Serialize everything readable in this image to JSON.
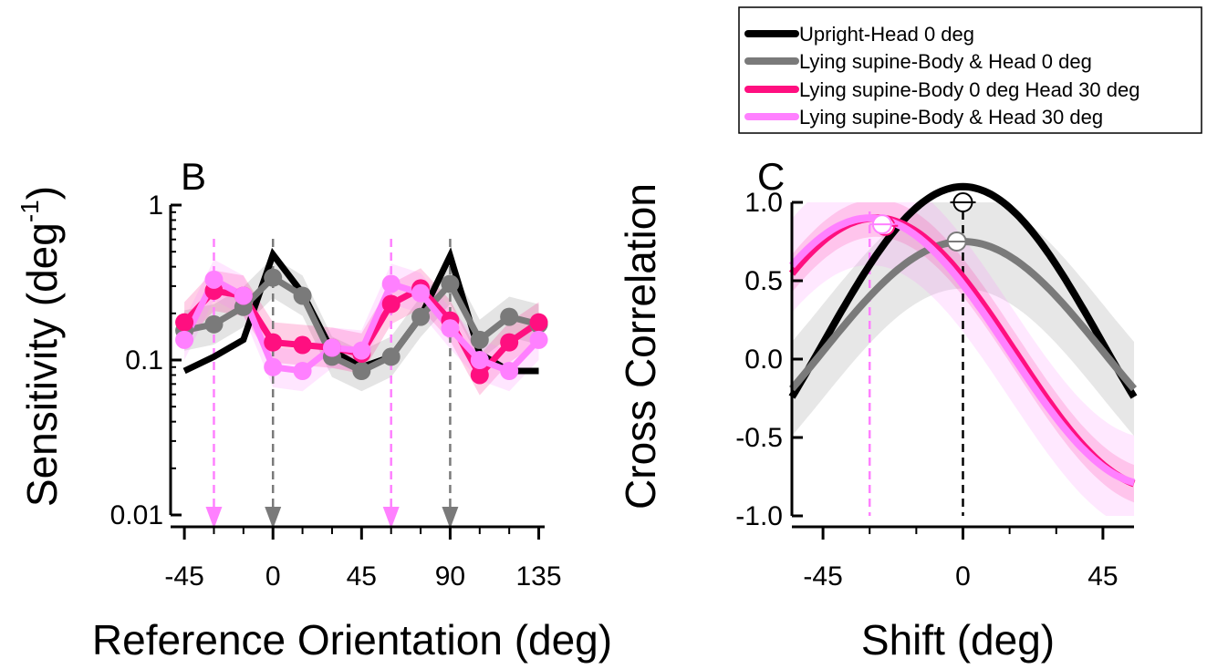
{
  "legend": {
    "entries": [
      {
        "label": "Upright-Head 0 deg",
        "color": "#000000"
      },
      {
        "label": "Lying supine-Body & Head 0 deg",
        "color": "#7a7a7a"
      },
      {
        "label": "Lying supine-Body 0 deg Head 30 deg",
        "color": "#ff0f80"
      },
      {
        "label": "Lying supine-Body & Head 30 deg",
        "color": "#ff80ff"
      }
    ]
  },
  "chart_data": [
    {
      "type": "line",
      "panel_label": "B",
      "xlabel": "Reference Orientation (deg)",
      "ylabel_main": "Sensitivity (deg",
      "ylabel_sup": "-1",
      "ylabel_close": ")",
      "yscale": "log",
      "xlim": [
        -52,
        138
      ],
      "ylim": [
        0.01,
        1
      ],
      "xticks": [
        -45,
        0,
        45,
        90,
        135
      ],
      "xtick_labels": [
        "-45",
        "0",
        "45",
        "90",
        "135"
      ],
      "yticks": [
        0.01,
        0.1,
        1
      ],
      "ytick_labels": [
        "0.01",
        "0.1",
        "1"
      ],
      "x": [
        -45,
        -30,
        -15,
        0,
        15,
        30,
        45,
        60,
        75,
        90,
        105,
        120,
        135
      ],
      "series": [
        {
          "name": "Upright-Head 0 deg",
          "color": "#000000",
          "markers": false,
          "values": [
            0.085,
            0.105,
            0.135,
            0.48,
            0.27,
            0.115,
            0.09,
            0.105,
            0.19,
            0.47,
            0.11,
            0.085,
            0.085
          ]
        },
        {
          "name": "Lying supine-Body & Head 0 deg",
          "color": "#7a7a7a",
          "markers": true,
          "values": [
            0.155,
            0.17,
            0.22,
            0.34,
            0.26,
            0.105,
            0.085,
            0.105,
            0.19,
            0.31,
            0.135,
            0.19,
            0.17
          ]
        },
        {
          "name": "Lying supine-Body 0 deg Head 30 deg",
          "color": "#ff0f80",
          "markers": true,
          "values": [
            0.175,
            0.28,
            0.26,
            0.13,
            0.125,
            0.12,
            0.11,
            0.23,
            0.29,
            0.18,
            0.08,
            0.13,
            0.175
          ]
        },
        {
          "name": "Lying supine-Body & Head 30 deg",
          "color": "#ff80ff",
          "markers": true,
          "values": [
            0.135,
            0.33,
            0.26,
            0.09,
            0.085,
            0.12,
            0.115,
            0.31,
            0.27,
            0.16,
            0.1,
            0.085,
            0.135
          ]
        }
      ],
      "arrows": [
        {
          "x": -30,
          "color": "#ff80ff"
        },
        {
          "x": 0,
          "color": "#7a7a7a"
        },
        {
          "x": 60,
          "color": "#ff80ff"
        },
        {
          "x": 90,
          "color": "#7a7a7a"
        }
      ]
    },
    {
      "type": "line",
      "panel_label": "C",
      "xlabel": "Shift (deg)",
      "ylabel": "Cross Correlation",
      "xlim": [
        -55,
        55
      ],
      "ylim": [
        -1.0,
        1.0
      ],
      "xticks": [
        -45,
        0,
        45
      ],
      "xtick_labels": [
        "-45",
        "0",
        "45"
      ],
      "yticks": [
        1.0,
        0.5,
        0.0,
        -0.5,
        -1.0
      ],
      "ytick_labels": [
        "1.0",
        "0.5",
        "0.0",
        "-0.5",
        "-1.0"
      ],
      "series": [
        {
          "name": "Upright-Head 0 deg",
          "color": "#000000",
          "peak_shift": 0,
          "amplitude": 1.0,
          "offset": 0.1,
          "band": 0.0
        },
        {
          "name": "Lying supine-Body & Head 0 deg",
          "color": "#7a7a7a",
          "peak_shift": 0,
          "amplitude": 0.7,
          "offset": 0.05,
          "band": 0.3
        },
        {
          "name": "Lying supine-Body 0 deg Head 30 deg",
          "color": "#ff0f80",
          "peak_shift": -28,
          "amplitude": 0.86,
          "offset": 0.04,
          "band": 0.12
        },
        {
          "name": "Lying supine-Body & Head 30 deg",
          "color": "#ff80ff",
          "peak_shift": -30,
          "amplitude": 0.85,
          "offset": 0.05,
          "band": 0.3
        }
      ],
      "reference_lines": [
        {
          "x": 0,
          "color": "#000000"
        },
        {
          "x": -30,
          "color": "#ff80ff"
        }
      ],
      "peak_markers": [
        {
          "x": 0,
          "y": 1.0,
          "color": "#000000"
        },
        {
          "x": -2,
          "y": 0.75,
          "color": "#7a7a7a"
        },
        {
          "x": -25,
          "y": 0.85,
          "color": "#ff0f80"
        },
        {
          "x": -26,
          "y": 0.86,
          "color": "#ff80ff"
        }
      ]
    }
  ]
}
